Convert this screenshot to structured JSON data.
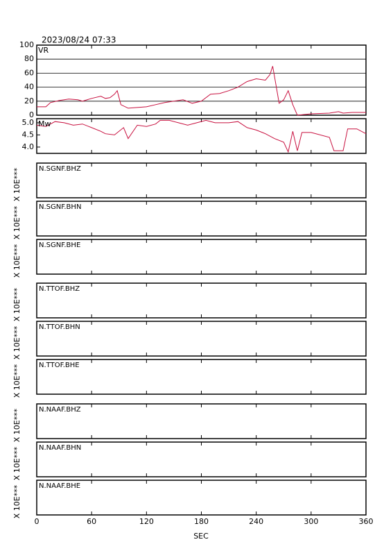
{
  "timestamp": "2023/08/24 07:33",
  "x_axis": {
    "xlim": [
      0,
      360
    ],
    "xticks": [
      0,
      60,
      120,
      180,
      240,
      300,
      360
    ],
    "label": "SEC"
  },
  "chart_data": [
    {
      "type": "line",
      "label": "VR",
      "color": "#c8103f",
      "grid": true,
      "ylim": [
        0,
        100
      ],
      "yticks": [
        0,
        20,
        40,
        60,
        80,
        100
      ],
      "x": [
        0,
        10,
        15,
        25,
        35,
        45,
        50,
        60,
        70,
        75,
        80,
        85,
        88,
        92,
        100,
        110,
        120,
        130,
        140,
        150,
        160,
        170,
        180,
        190,
        200,
        210,
        220,
        230,
        240,
        250,
        255,
        258,
        262,
        265,
        270,
        275,
        280,
        285,
        300,
        320,
        330,
        335,
        345,
        360
      ],
      "values": [
        12,
        12,
        18,
        21,
        23,
        22,
        20,
        24,
        27,
        24,
        25,
        30,
        35,
        15,
        10,
        11,
        12,
        15,
        18,
        20,
        22,
        17,
        20,
        30,
        31,
        35,
        40,
        48,
        52,
        50,
        58,
        70,
        40,
        17,
        22,
        35,
        15,
        0,
        2,
        3,
        5,
        3,
        4,
        4
      ]
    },
    {
      "type": "line",
      "label": "Mw",
      "color": "#c8103f",
      "grid": false,
      "ylim": [
        3.74,
        5.17
      ],
      "yticks": [
        {
          "value": 4,
          "label": "4.0"
        },
        {
          "value": 4.5,
          "label": "4.5"
        },
        {
          "value": 5,
          "label": "5.0"
        }
      ],
      "x": [
        0,
        10,
        20,
        30,
        40,
        50,
        60,
        70,
        75,
        85,
        95,
        100,
        110,
        120,
        130,
        135,
        145,
        155,
        165,
        175,
        185,
        195,
        210,
        220,
        230,
        240,
        250,
        260,
        270,
        275,
        280,
        285,
        290,
        300,
        320,
        325,
        335,
        340,
        350,
        360
      ],
      "values": [
        4.9,
        4.85,
        5.05,
        5.0,
        4.9,
        4.95,
        4.8,
        4.65,
        4.55,
        4.5,
        4.8,
        4.35,
        4.9,
        4.85,
        4.95,
        5.1,
        5.1,
        5.0,
        4.9,
        5.0,
        5.1,
        5.0,
        5.0,
        5.05,
        4.8,
        4.7,
        4.55,
        4.35,
        4.2,
        3.8,
        4.65,
        3.85,
        4.6,
        4.6,
        4.4,
        3.85,
        3.85,
        4.75,
        4.75,
        4.55
      ]
    },
    {
      "type": "waveform",
      "label": "N.SGNF.BHZ",
      "ylabel": "X 10E***"
    },
    {
      "type": "waveform",
      "label": "N.SGNF.BHN",
      "ylabel": "X 10E***"
    },
    {
      "type": "waveform",
      "label": "N.SGNF.BHE",
      "ylabel": "X 10E***"
    },
    {
      "type": "waveform",
      "label": "N.TTOF.BHZ",
      "ylabel": "X 10E***"
    },
    {
      "type": "waveform",
      "label": "N.TTOF.BHN",
      "ylabel": "X 10E***"
    },
    {
      "type": "waveform",
      "label": "N.TTOF.BHE",
      "ylabel": "X 10E***"
    },
    {
      "type": "waveform",
      "label": "N.NAAF.BHZ",
      "ylabel": "X 10E***"
    },
    {
      "type": "waveform",
      "label": "N.NAAF.BHN",
      "ylabel": "X 10E***"
    },
    {
      "type": "waveform",
      "label": "N.NAAF.BHE",
      "ylabel": "X 10E***"
    }
  ]
}
